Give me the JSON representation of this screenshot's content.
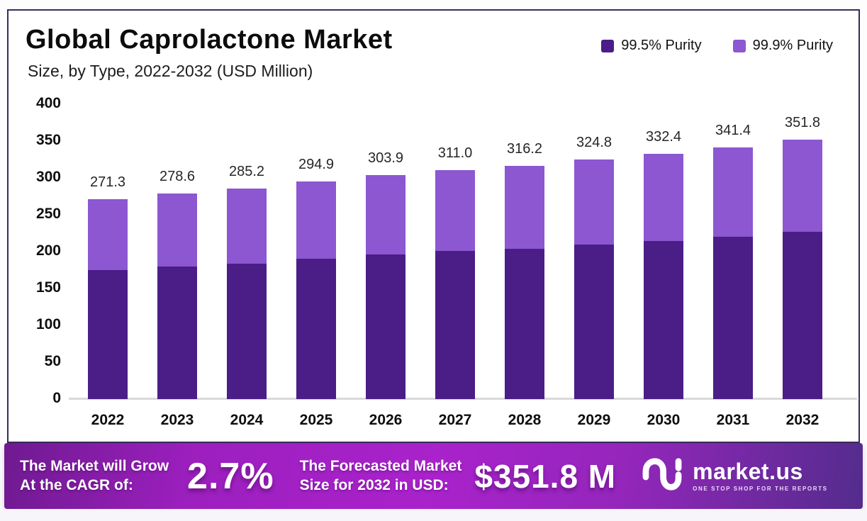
{
  "header": {
    "title": "Global Caprolactone Market",
    "subtitle": "Size, by Type, 2022-2032 (USD Million)"
  },
  "legend": [
    {
      "label": "99.5% Purity",
      "color": "#4a1d87"
    },
    {
      "label": "99.9% Purity",
      "color": "#8c57d1"
    }
  ],
  "chart_data": {
    "type": "bar",
    "stacked": true,
    "title": "Global Caprolactone Market Size, by Type, 2022-2032 (USD Million)",
    "categories": [
      "2022",
      "2023",
      "2024",
      "2025",
      "2026",
      "2027",
      "2028",
      "2029",
      "2030",
      "2031",
      "2032"
    ],
    "series": [
      {
        "name": "99.5% Purity",
        "color": "#4a1d87",
        "values": [
          175.0,
          180.0,
          184.0,
          190.0,
          196.0,
          201.0,
          204.0,
          209.6,
          214.5,
          220.3,
          227.0
        ]
      },
      {
        "name": "99.9% Purity",
        "color": "#8c57d1",
        "values": [
          96.3,
          98.6,
          101.2,
          104.9,
          107.9,
          110.0,
          112.2,
          115.2,
          117.9,
          121.1,
          124.8
        ]
      }
    ],
    "totals": [
      271.3,
      278.6,
      285.2,
      294.9,
      303.9,
      311.0,
      316.2,
      324.8,
      332.4,
      341.4,
      351.8
    ],
    "total_labels": [
      "271.3",
      "278.6",
      "285.2",
      "294.9",
      "303.9",
      "311.0",
      "316.2",
      "324.8",
      "332.4",
      "341.4",
      "351.8"
    ],
    "xlabel": "",
    "ylabel": "",
    "ylim": [
      0,
      400
    ],
    "yticks": [
      0,
      50,
      100,
      150,
      200,
      250,
      300,
      350,
      400
    ],
    "grid": false,
    "legend_position": "top-right"
  },
  "footer": {
    "cagr_line1": "The Market will Grow",
    "cagr_line2": "At the CAGR of:",
    "cagr_value": "2.7%",
    "forecast_line1": "The Forecasted Market",
    "forecast_line2": "Size for 2032 in USD:",
    "forecast_value": "$351.8 M",
    "brand": {
      "name": "market.us",
      "tagline": "ONE STOP SHOP FOR THE REPORTS"
    }
  },
  "colors": {
    "series_dark": "#4a1d87",
    "series_light": "#8c57d1",
    "card_border": "#3a2a5c",
    "banner_center": "#a922cb",
    "banner_left": "#6f1a90",
    "banner_right": "#532c8c",
    "baseline": "#d9d9d9"
  }
}
